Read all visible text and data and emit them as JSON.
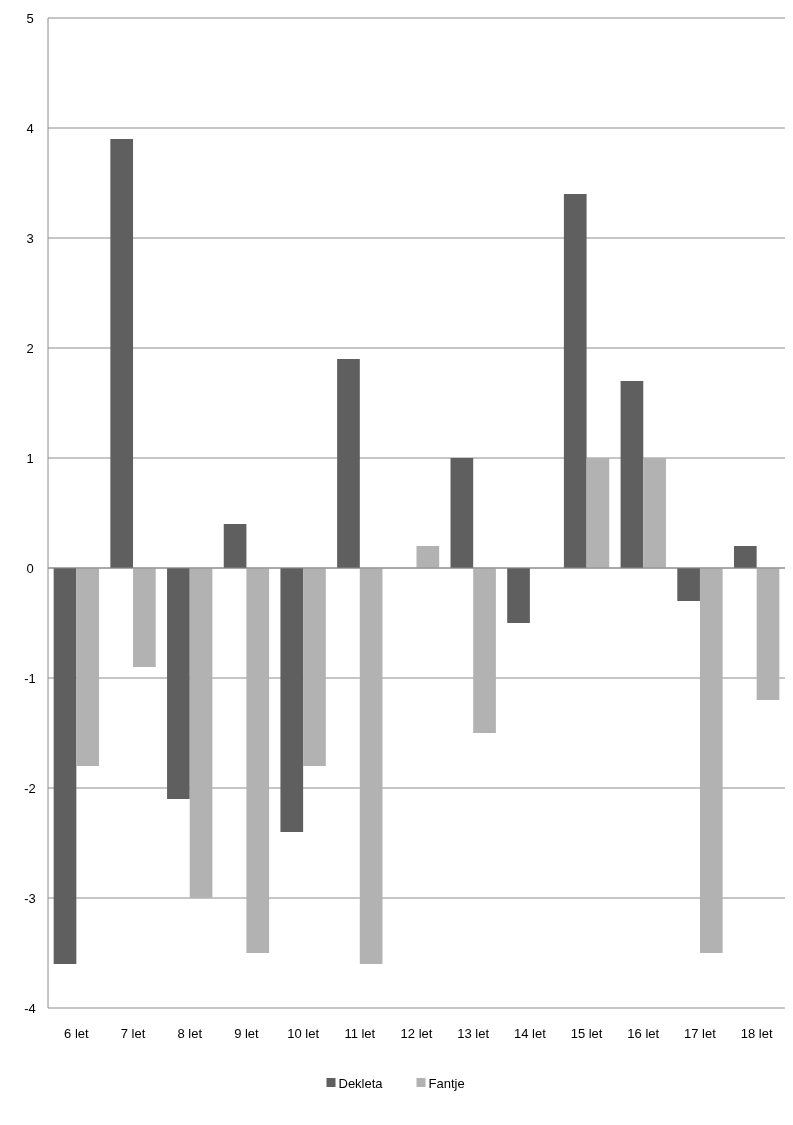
{
  "chart_data": {
    "type": "bar",
    "categories": [
      "6 let",
      "7 let",
      "8 let",
      "9 let",
      "10 let",
      "11 let",
      "12 let",
      "13 let",
      "14 let",
      "15 let",
      "16 let",
      "17 let",
      "18 let"
    ],
    "series": [
      {
        "name": "Dekleta",
        "color": "#5f5f5f",
        "values": [
          -3.6,
          3.9,
          -2.1,
          0.4,
          -2.4,
          1.9,
          0,
          1.0,
          -0.5,
          3.4,
          1.7,
          -0.3,
          0.2
        ]
      },
      {
        "name": "Fantje",
        "color": "#b2b2b2",
        "values": [
          -1.8,
          -0.9,
          -3.0,
          -3.5,
          -1.8,
          -3.6,
          0.2,
          -1.5,
          0,
          1.0,
          1.0,
          -3.5,
          -1.2
        ]
      }
    ],
    "ylim": [
      -4,
      5
    ],
    "yticks": [
      -4,
      -3,
      -2,
      -1,
      0,
      1,
      2,
      3,
      4,
      5
    ],
    "grid": "y",
    "legend": "bottom"
  }
}
